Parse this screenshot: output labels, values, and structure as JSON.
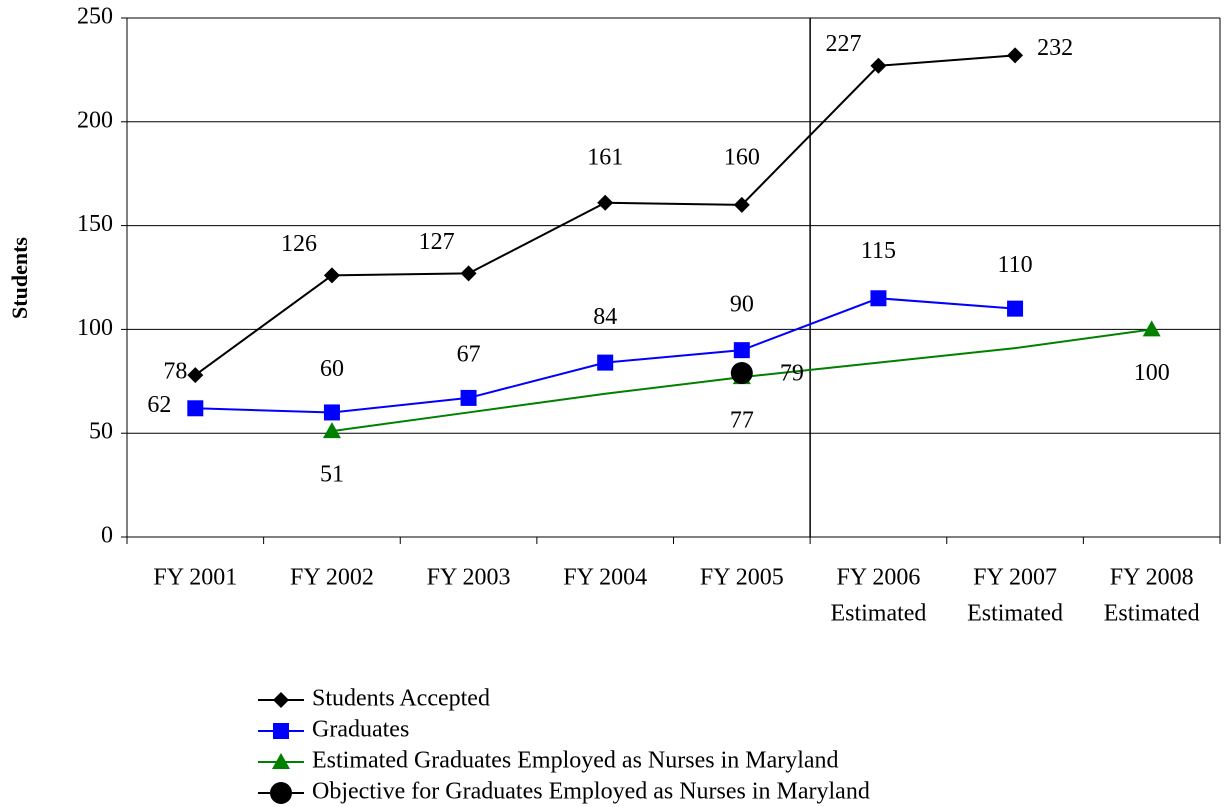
{
  "chart_data": {
    "type": "line",
    "y_axis_label": "Students",
    "categories": [
      [
        "FY 2001"
      ],
      [
        "FY 2002"
      ],
      [
        "FY 2003"
      ],
      [
        "FY 2004"
      ],
      [
        "FY 2005"
      ],
      [
        "FY 2006",
        "Estimated"
      ],
      [
        "FY 2007",
        "Estimated"
      ],
      [
        "FY 2008",
        "Estimated"
      ]
    ],
    "series": [
      {
        "name": "Students Accepted",
        "color": "#000000",
        "marker": "diamond",
        "values": [
          78,
          126,
          127,
          161,
          160,
          227,
          232,
          null
        ]
      },
      {
        "name": "Graduates",
        "color": "#0000ff",
        "marker": "square",
        "values": [
          62,
          60,
          67,
          84,
          90,
          115,
          110,
          null
        ]
      },
      {
        "name": "Estimated Graduates Employed as Nurses in Maryland",
        "color": "#008000",
        "marker": "triangle",
        "values": [
          null,
          51,
          60,
          69,
          77,
          84,
          91,
          100
        ],
        "value_labels": [
          null,
          "51",
          null,
          null,
          "77",
          null,
          null,
          "100"
        ]
      },
      {
        "name": "Objective for Graduates Employed as Nurses in Maryland",
        "color": "#000000",
        "marker": "circle",
        "values": [
          null,
          null,
          null,
          null,
          79,
          null,
          null,
          null
        ]
      }
    ],
    "ylim": [
      0,
      250
    ],
    "yticks": [
      0,
      50,
      100,
      150,
      200,
      250
    ],
    "grid": true
  }
}
